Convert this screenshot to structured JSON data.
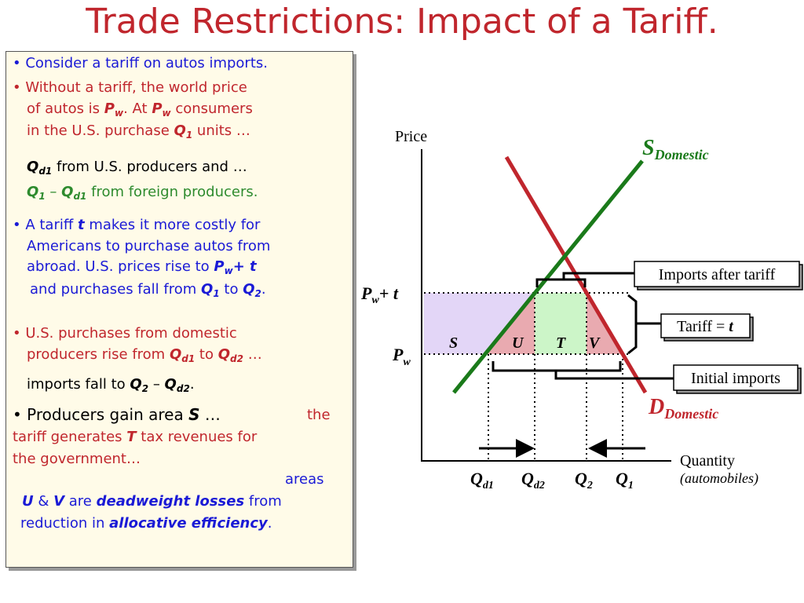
{
  "title": "Trade Restrictions: Impact of a Tariff.",
  "panel": {
    "b1": [
      "• Consider a tariff on autos imports."
    ],
    "b2a": [
      "• Without a tariff, the world price"
    ],
    "b2b": [
      "of autos is ",
      "P",
      "w",
      ".  At ",
      "P",
      "w",
      " consumers"
    ],
    "b2c": [
      "in the U.S. purchase ",
      "Q",
      "1",
      " units …"
    ],
    "b2d": [
      "Q",
      "d1",
      " from U.S. producers and …"
    ],
    "b2e": [
      "Q",
      "1",
      " – ",
      "Q",
      "d1",
      " from foreign producers."
    ],
    "b3a": [
      "• A tariff ",
      "t",
      " makes it more costly for"
    ],
    "b3b": [
      "Americans to purchase autos from"
    ],
    "b3c": [
      "abroad.  U.S. prices rise to ",
      "P",
      "w",
      "+  t"
    ],
    "b3d": [
      "and purchases fall from ",
      "Q",
      "1",
      " to ",
      "Q",
      "2",
      "."
    ],
    "b4a": [
      "• U.S. purchases from domestic"
    ],
    "b4b": [
      "producers rise from ",
      "Q",
      "d1",
      " to ",
      "Q",
      "d2",
      " …"
    ],
    "b4c": [
      "imports fall to ",
      "Q",
      "2",
      " – ",
      "Q",
      "d2",
      "."
    ],
    "b5a": [
      "• Producers gain area ",
      "S",
      " …",
      "the"
    ],
    "b5b": [
      "tariff generates ",
      "T",
      " tax revenues for"
    ],
    "b5c": [
      "the government…"
    ],
    "b5d": [
      "areas"
    ],
    "b5e": [
      "U",
      " & ",
      "V",
      " are ",
      "deadweight losses",
      " from"
    ],
    "b5f": [
      "reduction in ",
      "allocative efficiency",
      "."
    ]
  },
  "diagram": {
    "price_axis": "Price",
    "quantity_axis": [
      "Quantity",
      "(automobiles)"
    ],
    "supply": [
      "S",
      "Domestic"
    ],
    "demand": [
      "D",
      "Domestic"
    ],
    "pw_t": [
      "P",
      "w",
      "+ t"
    ],
    "pw": [
      "P",
      "w"
    ],
    "areas": [
      "S",
      "U",
      "T",
      "V"
    ],
    "q_labels": [
      [
        "Q",
        "d1"
      ],
      [
        "Q",
        "d2"
      ],
      [
        "Q",
        "2"
      ],
      [
        "Q",
        "1"
      ]
    ],
    "imports_after": "Imports after tariff",
    "tariff": [
      "Tariff = ",
      "t"
    ],
    "initial_imports": "Initial imports"
  }
}
